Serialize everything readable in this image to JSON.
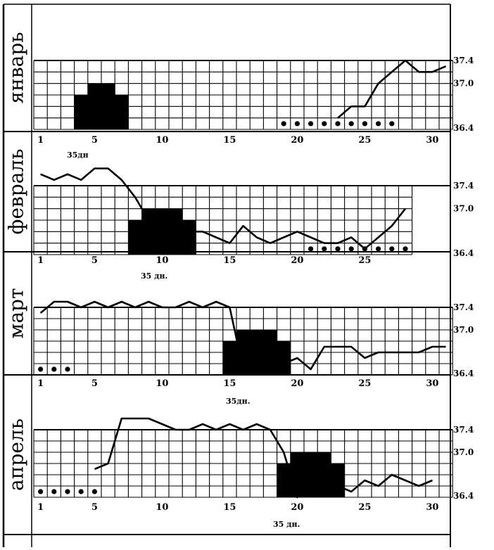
{
  "chart_data": [
    {
      "type": "line",
      "month": "январь",
      "day_ticks": [
        "1",
        "5",
        "10",
        "15",
        "20",
        "25",
        "30"
      ],
      "temp_ticks": [
        "37.4",
        "37.0",
        "36.4"
      ],
      "cycle_note": "35дн",
      "menstruation_days": [
        4,
        5,
        6,
        7
      ],
      "marked_days": [
        19,
        20,
        21,
        22,
        23,
        24,
        25,
        26,
        27
      ],
      "temperature": {
        "days": [
          23,
          24,
          25,
          26,
          27,
          28,
          29,
          30,
          31
        ],
        "values": [
          36.4,
          36.6,
          36.6,
          37.0,
          37.2,
          37.4,
          37.2,
          37.2,
          37.3
        ]
      }
    },
    {
      "type": "line",
      "month": "февраль",
      "day_ticks": [
        "1",
        "5",
        "10",
        "15",
        "20",
        "25"
      ],
      "temp_ticks": [
        "37.4",
        "37.0",
        "36.4"
      ],
      "cycle_note": "35 дн.",
      "menstruation_days": [
        8,
        9,
        10,
        11,
        12
      ],
      "marked_days": [
        21,
        22,
        23,
        24,
        25,
        26,
        27,
        28
      ],
      "temperature": {
        "days": [
          1,
          2,
          3,
          4,
          5,
          6,
          7,
          8,
          9,
          10,
          11,
          12,
          13,
          14,
          15,
          16,
          17,
          18,
          19,
          20,
          21,
          22,
          23,
          24,
          25,
          26,
          27,
          28
        ],
        "values": [
          37.6,
          37.5,
          37.6,
          37.5,
          37.7,
          37.7,
          37.5,
          37.2,
          36.8,
          36.5,
          36.5,
          36.6,
          36.6,
          36.5,
          36.4,
          36.7,
          36.5,
          36.4,
          36.5,
          36.6,
          36.5,
          36.4,
          36.4,
          36.5,
          36.3,
          36.5,
          36.7,
          37.0
        ]
      }
    },
    {
      "type": "line",
      "month": "март",
      "day_ticks": [
        "1",
        "5",
        "10",
        "15",
        "20",
        "25",
        "30"
      ],
      "temp_ticks": [
        "37.4",
        "37.0",
        "36.4"
      ],
      "cycle_note": "35дн.",
      "menstruation_days": [
        15,
        16,
        17,
        18,
        19
      ],
      "marked_days": [
        1,
        2,
        3
      ],
      "temperature": {
        "days": [
          1,
          2,
          3,
          4,
          5,
          6,
          7,
          8,
          9,
          10,
          11,
          12,
          13,
          14,
          15,
          16,
          17,
          18,
          19,
          20,
          21,
          22,
          23,
          24,
          25,
          26,
          27,
          28,
          29,
          30,
          31
        ],
        "values": [
          37.3,
          37.5,
          37.5,
          37.4,
          37.5,
          37.4,
          37.5,
          37.4,
          37.5,
          37.4,
          37.4,
          37.5,
          37.4,
          37.5,
          37.4,
          36.3,
          36.5,
          36.6,
          36.4,
          36.5,
          36.3,
          36.7,
          36.7,
          36.7,
          36.5,
          36.6,
          36.6,
          36.6,
          36.6,
          36.7,
          36.7
        ]
      }
    },
    {
      "type": "line",
      "month": "апрель",
      "day_ticks": [
        "1",
        "5",
        "10",
        "15",
        "20",
        "25",
        "30"
      ],
      "temp_ticks": [
        "37.4",
        "37.0",
        "36.4"
      ],
      "cycle_note": "35 дн.",
      "menstruation_days": [
        19,
        20,
        21,
        22,
        23
      ],
      "marked_days": [
        1,
        2,
        3,
        4,
        5
      ],
      "temperature": {
        "days": [
          5,
          6,
          7,
          8,
          9,
          10,
          11,
          12,
          13,
          14,
          15,
          16,
          17,
          18,
          19,
          20,
          21,
          22,
          23,
          24,
          25,
          26,
          27,
          28,
          29,
          30
        ],
        "values": [
          36.7,
          36.8,
          37.6,
          37.6,
          37.6,
          37.5,
          37.4,
          37.4,
          37.5,
          37.4,
          37.5,
          37.4,
          37.5,
          37.4,
          37.0,
          36.2,
          36.4,
          36.4,
          36.4,
          36.3,
          36.5,
          36.4,
          36.6,
          36.5,
          36.4,
          36.5
        ]
      }
    }
  ]
}
